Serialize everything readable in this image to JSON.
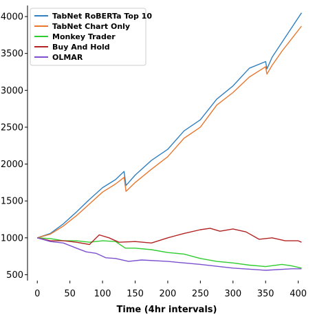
{
  "chart_data": {
    "type": "line",
    "xlabel": "Time (4hr intervals)",
    "ylabel": "",
    "xlim": [
      -15,
      412
    ],
    "ylim": [
      420,
      4150
    ],
    "xticks": [
      0,
      50,
      100,
      150,
      200,
      250,
      300,
      350,
      400
    ],
    "yticks": [
      500,
      1000,
      1500,
      2000,
      2500,
      3000,
      3500,
      4000
    ],
    "legend_position": "top-left",
    "series": [
      {
        "name": "TabNet RoBERTa Top 10",
        "color": "#2f7fc1",
        "x": [
          0,
          20,
          40,
          60,
          80,
          100,
          120,
          133,
          136,
          150,
          175,
          200,
          225,
          250,
          275,
          300,
          325,
          350,
          352,
          360,
          375,
          390,
          405
        ],
        "y": [
          1000,
          1060,
          1190,
          1350,
          1520,
          1680,
          1790,
          1900,
          1710,
          1850,
          2050,
          2200,
          2450,
          2600,
          2880,
          3060,
          3300,
          3390,
          3290,
          3450,
          3650,
          3850,
          4050
        ]
      },
      {
        "name": "TabNet Chart Only",
        "color": "#e8772e",
        "x": [
          0,
          20,
          40,
          60,
          80,
          100,
          120,
          133,
          136,
          150,
          175,
          200,
          225,
          250,
          275,
          300,
          325,
          350,
          352,
          360,
          375,
          390,
          405
        ],
        "y": [
          1000,
          1050,
          1160,
          1300,
          1460,
          1620,
          1730,
          1820,
          1630,
          1750,
          1930,
          2100,
          2350,
          2500,
          2800,
          2970,
          3180,
          3320,
          3220,
          3340,
          3530,
          3700,
          3870
        ]
      },
      {
        "name": "Monkey Trader",
        "color": "#2ecc2e",
        "x": [
          0,
          20,
          40,
          60,
          80,
          100,
          120,
          135,
          150,
          175,
          200,
          225,
          250,
          275,
          300,
          325,
          350,
          375,
          390,
          405
        ],
        "y": [
          1000,
          990,
          960,
          960,
          940,
          960,
          950,
          860,
          860,
          840,
          800,
          780,
          720,
          680,
          660,
          630,
          610,
          640,
          620,
          590
        ]
      },
      {
        "name": "Buy And Hold",
        "color": "#b22222",
        "x": [
          0,
          20,
          40,
          60,
          80,
          95,
          110,
          125,
          150,
          175,
          200,
          225,
          250,
          265,
          280,
          300,
          320,
          340,
          360,
          380,
          400,
          405
        ],
        "y": [
          1000,
          960,
          960,
          940,
          910,
          1040,
          1000,
          940,
          950,
          930,
          1000,
          1060,
          1110,
          1130,
          1090,
          1120,
          1080,
          980,
          1000,
          960,
          960,
          940
        ]
      },
      {
        "name": "OLMAR",
        "color": "#7b4fcf",
        "x": [
          0,
          20,
          40,
          60,
          75,
          90,
          105,
          120,
          140,
          160,
          200,
          250,
          300,
          350,
          390,
          405
        ],
        "y": [
          1000,
          950,
          930,
          860,
          810,
          790,
          730,
          720,
          680,
          700,
          680,
          640,
          590,
          560,
          580,
          580
        ]
      }
    ]
  }
}
